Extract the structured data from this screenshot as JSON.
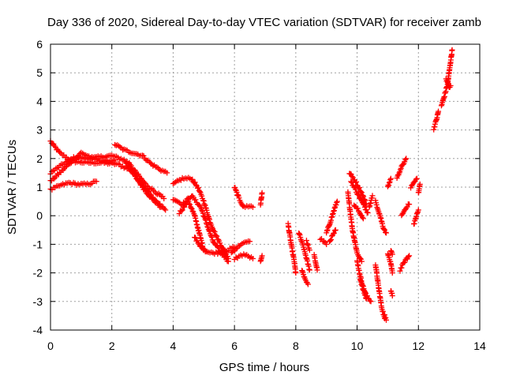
{
  "chart_data": {
    "type": "scatter",
    "title": "Day 336 of 2020, Sidereal Day-to-day VTEC variation (SDTVAR) for receiver zamb",
    "xlabel": "GPS time / hours",
    "ylabel": "SDTVAR / TECUs",
    "xlim": [
      0,
      14
    ],
    "ylim": [
      -4,
      6
    ],
    "xticks": [
      0,
      2,
      4,
      6,
      8,
      10,
      12,
      14
    ],
    "yticks": [
      -4,
      -3,
      -2,
      -1,
      0,
      1,
      2,
      3,
      4,
      5,
      6
    ],
    "grid": true,
    "marker": "+",
    "color": "#ff0000",
    "segments": [
      [
        [
          0.0,
          2.6
        ],
        [
          0.3,
          2.2
        ],
        [
          0.7,
          1.9
        ],
        [
          1.2,
          1.85
        ],
        [
          1.7,
          1.85
        ],
        [
          2.2,
          1.8
        ],
        [
          2.6,
          1.6
        ],
        [
          2.9,
          1.2
        ],
        [
          3.2,
          0.8
        ],
        [
          3.5,
          0.45
        ],
        [
          3.75,
          0.2
        ]
      ],
      [
        [
          0.0,
          1.5
        ],
        [
          0.4,
          1.8
        ],
        [
          0.8,
          2.05
        ],
        [
          1.2,
          2.0
        ],
        [
          1.6,
          2.05
        ],
        [
          2.0,
          2.1
        ],
        [
          2.4,
          1.95
        ],
        [
          2.7,
          1.5
        ],
        [
          3.0,
          1.0
        ],
        [
          3.3,
          0.6
        ],
        [
          3.6,
          0.3
        ]
      ],
      [
        [
          0.0,
          1.2
        ],
        [
          0.3,
          1.5
        ],
        [
          0.6,
          1.8
        ],
        [
          1.0,
          2.2
        ],
        [
          1.4,
          2.0
        ],
        [
          1.8,
          1.9
        ],
        [
          2.1,
          1.95
        ]
      ],
      [
        [
          0.0,
          0.9
        ],
        [
          0.3,
          1.05
        ],
        [
          0.6,
          1.15
        ],
        [
          0.9,
          1.1
        ],
        [
          1.2,
          1.1
        ],
        [
          1.5,
          1.2
        ]
      ],
      [
        [
          2.1,
          2.5
        ],
        [
          2.4,
          2.3
        ],
        [
          2.7,
          2.2
        ],
        [
          3.0,
          2.1
        ],
        [
          3.3,
          1.8
        ],
        [
          3.6,
          1.6
        ],
        [
          3.8,
          1.5
        ]
      ],
      [
        [
          2.5,
          1.9
        ],
        [
          2.8,
          1.5
        ],
        [
          3.1,
          1.1
        ],
        [
          3.4,
          0.85
        ],
        [
          3.7,
          0.6
        ]
      ],
      [
        [
          4.0,
          1.1
        ],
        [
          4.3,
          1.3
        ],
        [
          4.6,
          1.3
        ],
        [
          4.8,
          1.0
        ],
        [
          5.0,
          0.5
        ],
        [
          5.2,
          -0.2
        ],
        [
          5.4,
          -0.7
        ],
        [
          5.6,
          -1.1
        ],
        [
          5.8,
          -1.5
        ]
      ],
      [
        [
          4.0,
          0.6
        ],
        [
          4.3,
          0.4
        ],
        [
          4.6,
          0.7
        ],
        [
          4.9,
          0.3
        ],
        [
          5.1,
          -0.3
        ],
        [
          5.3,
          -0.9
        ],
        [
          5.5,
          -1.2
        ],
        [
          5.8,
          -1.6
        ]
      ],
      [
        [
          4.2,
          0.1
        ],
        [
          4.5,
          0.5
        ],
        [
          4.7,
          0.0
        ],
        [
          4.85,
          -0.6
        ],
        [
          5.0,
          -1.2
        ],
        [
          5.2,
          -1.3
        ],
        [
          5.5,
          -1.3
        ],
        [
          5.8,
          -1.2
        ],
        [
          6.0,
          -1.1
        ]
      ],
      [
        [
          4.7,
          -0.75
        ],
        [
          4.9,
          -1.1
        ],
        [
          5.1,
          -1.25
        ]
      ],
      [
        [
          5.9,
          -1.3
        ],
        [
          6.2,
          -1.0
        ],
        [
          6.5,
          -0.9
        ]
      ],
      [
        [
          6.0,
          -1.5
        ],
        [
          6.3,
          -1.35
        ],
        [
          6.6,
          -1.5
        ]
      ],
      [
        [
          6.0,
          1.0
        ],
        [
          6.15,
          0.6
        ],
        [
          6.3,
          0.3
        ],
        [
          6.5,
          0.35
        ],
        [
          6.6,
          0.3
        ]
      ],
      [
        [
          6.85,
          -1.6
        ],
        [
          6.9,
          -1.4
        ]
      ],
      [
        [
          6.85,
          0.4
        ],
        [
          6.9,
          0.8
        ]
      ],
      [
        [
          7.75,
          -0.3
        ],
        [
          7.85,
          -1.0
        ],
        [
          7.95,
          -1.6
        ],
        [
          8.0,
          -2.0
        ]
      ],
      [
        [
          8.1,
          -0.6
        ],
        [
          8.25,
          -1.1
        ],
        [
          8.35,
          -1.5
        ],
        [
          8.45,
          -1.9
        ]
      ],
      [
        [
          8.2,
          -1.9
        ],
        [
          8.3,
          -2.2
        ],
        [
          8.4,
          -2.4
        ]
      ],
      [
        [
          8.35,
          -0.9
        ],
        [
          8.45,
          -1.2
        ]
      ],
      [
        [
          8.6,
          -1.4
        ],
        [
          8.7,
          -1.9
        ]
      ],
      [
        [
          8.8,
          -0.8
        ],
        [
          9.0,
          -1.0
        ]
      ],
      [
        [
          9.0,
          -0.6
        ],
        [
          9.1,
          -0.3
        ],
        [
          9.25,
          0.2
        ],
        [
          9.35,
          0.5
        ]
      ],
      [
        [
          9.1,
          -0.9
        ],
        [
          9.3,
          -0.5
        ]
      ],
      [
        [
          9.7,
          0.8
        ],
        [
          9.85,
          -0.5
        ],
        [
          10.0,
          -1.3
        ],
        [
          10.15,
          -1.6
        ]
      ],
      [
        [
          9.75,
          1.5
        ],
        [
          9.95,
          1.2
        ],
        [
          10.15,
          0.8
        ],
        [
          10.3,
          0.4
        ]
      ],
      [
        [
          9.8,
          1.2
        ],
        [
          10.0,
          0.8
        ],
        [
          10.2,
          0.4
        ],
        [
          10.35,
          0.1
        ]
      ],
      [
        [
          9.9,
          0.4
        ],
        [
          10.05,
          0.2
        ],
        [
          10.2,
          -0.1
        ]
      ],
      [
        [
          10.0,
          -1.6
        ],
        [
          10.1,
          -2.1
        ],
        [
          10.2,
          -2.5
        ],
        [
          10.3,
          -2.8
        ],
        [
          10.45,
          -3.0
        ]
      ],
      [
        [
          10.1,
          -2.2
        ],
        [
          10.2,
          -2.6
        ],
        [
          10.3,
          -2.9
        ]
      ],
      [
        [
          10.4,
          0.3
        ],
        [
          10.5,
          0.7
        ]
      ],
      [
        [
          10.6,
          -1.7
        ],
        [
          10.7,
          -2.5
        ],
        [
          10.8,
          -3.2
        ],
        [
          10.9,
          -3.6
        ]
      ],
      [
        [
          10.6,
          0.5
        ],
        [
          10.75,
          0.0
        ],
        [
          10.85,
          -0.4
        ],
        [
          10.95,
          -0.6
        ]
      ],
      [
        [
          10.9,
          -3.5
        ],
        [
          10.95,
          -3.65
        ]
      ],
      [
        [
          11.0,
          -1.3
        ],
        [
          11.1,
          -1.7
        ],
        [
          11.15,
          -2.0
        ]
      ],
      [
        [
          11.0,
          1.0
        ],
        [
          11.1,
          1.3
        ]
      ],
      [
        [
          11.1,
          -2.6
        ],
        [
          11.15,
          -2.8
        ]
      ],
      [
        [
          11.1,
          -1.2
        ],
        [
          11.15,
          -1.35
        ]
      ],
      [
        [
          11.3,
          1.3
        ],
        [
          11.45,
          1.7
        ],
        [
          11.6,
          2.0
        ]
      ],
      [
        [
          11.4,
          -1.9
        ],
        [
          11.55,
          -1.6
        ],
        [
          11.7,
          -1.4
        ]
      ],
      [
        [
          11.45,
          0.0
        ],
        [
          11.6,
          0.3
        ],
        [
          11.7,
          0.4
        ]
      ],
      [
        [
          11.75,
          1.0
        ],
        [
          11.95,
          1.3
        ]
      ],
      [
        [
          11.85,
          -0.3
        ],
        [
          12.0,
          0.2
        ]
      ],
      [
        [
          12.0,
          0.8
        ],
        [
          12.05,
          1.1
        ]
      ],
      [
        [
          12.5,
          3.05
        ],
        [
          12.6,
          3.4
        ],
        [
          12.65,
          3.65
        ]
      ],
      [
        [
          12.75,
          3.85
        ],
        [
          12.85,
          4.2
        ],
        [
          12.95,
          4.6
        ],
        [
          13.0,
          5.0
        ],
        [
          13.05,
          5.4
        ],
        [
          13.1,
          5.8
        ]
      ],
      [
        [
          12.9,
          4.8
        ],
        [
          13.0,
          4.5
        ],
        [
          13.05,
          4.55
        ]
      ]
    ]
  }
}
